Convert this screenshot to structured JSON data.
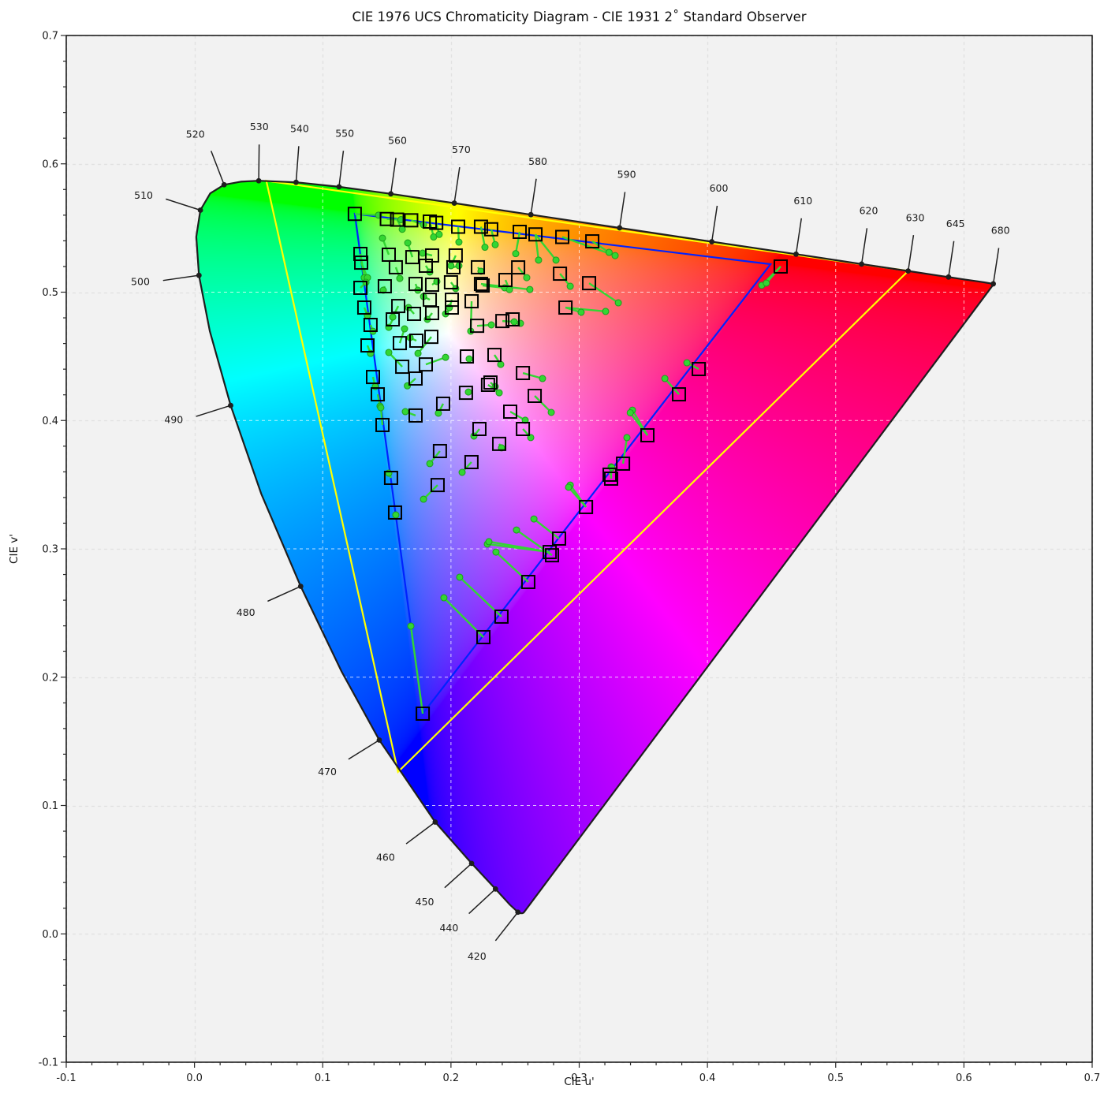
{
  "title": "CIE 1976 UCS Chromaticity Diagram - CIE 1931 2˚ Standard Observer",
  "axes": {
    "xlabel": "CIE u'",
    "ylabel": "CIE v'",
    "xlim": [
      -0.1,
      0.7
    ],
    "ylim": [
      -0.1,
      0.7
    ],
    "xticks": [
      "-0.1",
      "0.0",
      "0.1",
      "0.2",
      "0.3",
      "0.4",
      "0.5",
      "0.6",
      "0.7"
    ],
    "yticks": [
      "-0.1",
      "0.0",
      "0.1",
      "0.2",
      "0.3",
      "0.4",
      "0.5",
      "0.6",
      "0.7"
    ],
    "minor_tick_step": 0.02,
    "grid": true
  },
  "style": {
    "figure_bg": "#ffffff",
    "plot_bg": "#f2f2f2",
    "grid_gray": "#dcdcdc",
    "grid_white": "#ffffff",
    "spine": "#000000",
    "locus_line": "#1f1f1f",
    "tick_label_color": "#1a1a1a",
    "triangle_yellow": "#ffff00",
    "triangle_blue": "#0022ff",
    "marker_edge": "#000000",
    "measure_green": "#33d633",
    "measure_green_edge": "#1d9e1d"
  },
  "chart_data": {
    "type": "scatter",
    "title": "CIE 1976 UCS Chromaticity Diagram - CIE 1931 2˚ Standard Observer",
    "xlabel": "CIE u'",
    "ylabel": "CIE v'",
    "xlim": [
      -0.1,
      0.7
    ],
    "ylim": [
      -0.1,
      0.7
    ],
    "spectral_locus_format": "[wavelength_nm, u_prime, v_prime]",
    "spectral_locus": [
      [
        380,
        0.2568,
        0.0166
      ],
      [
        400,
        0.256,
        0.0161
      ],
      [
        410,
        0.2545,
        0.016
      ],
      [
        420,
        0.2522,
        0.0169
      ],
      [
        430,
        0.2461,
        0.0226
      ],
      [
        440,
        0.2347,
        0.035
      ],
      [
        450,
        0.2161,
        0.0549
      ],
      [
        460,
        0.1877,
        0.0871
      ],
      [
        470,
        0.1441,
        0.151
      ],
      [
        475,
        0.1147,
        0.2044
      ],
      [
        480,
        0.0828,
        0.2708
      ],
      [
        485,
        0.0521,
        0.3427
      ],
      [
        490,
        0.0282,
        0.4117
      ],
      [
        495,
        0.0119,
        0.4698
      ],
      [
        500,
        0.0035,
        0.5131
      ],
      [
        505,
        0.0014,
        0.5432
      ],
      [
        510,
        0.0046,
        0.5639
      ],
      [
        515,
        0.0123,
        0.577
      ],
      [
        520,
        0.0231,
        0.5837
      ],
      [
        525,
        0.036,
        0.5861
      ],
      [
        530,
        0.0501,
        0.5868
      ],
      [
        540,
        0.0792,
        0.5856
      ],
      [
        550,
        0.1127,
        0.5821
      ],
      [
        560,
        0.1531,
        0.5766
      ],
      [
        570,
        0.2026,
        0.5694
      ],
      [
        580,
        0.2623,
        0.5604
      ],
      [
        590,
        0.3315,
        0.5501
      ],
      [
        600,
        0.4034,
        0.5393
      ],
      [
        610,
        0.4691,
        0.5296
      ],
      [
        620,
        0.5202,
        0.5219
      ],
      [
        630,
        0.5565,
        0.5165
      ],
      [
        640,
        0.583,
        0.5125
      ],
      [
        645,
        0.588,
        0.5118
      ],
      [
        650,
        0.6005,
        0.5099
      ],
      [
        660,
        0.6109,
        0.5084
      ],
      [
        670,
        0.6162,
        0.5076
      ],
      [
        680,
        0.6229,
        0.5065
      ],
      [
        700,
        0.6234,
        0.5065
      ]
    ],
    "wavelength_labels": [
      420,
      440,
      450,
      460,
      470,
      480,
      490,
      500,
      510,
      520,
      530,
      540,
      550,
      560,
      570,
      580,
      590,
      600,
      610,
      620,
      630,
      645,
      680
    ],
    "gamut_triangles": [
      {
        "name": "outer-gamut-yellow",
        "color": "#ffff00",
        "vertices": [
          [
            0.056,
            0.5868
          ],
          [
            0.5566,
            0.5166
          ],
          [
            0.1587,
            0.1262
          ]
        ]
      },
      {
        "name": "inner-gamut-blue",
        "color": "#0022ff",
        "vertices": [
          [
            0.125,
            0.5611
          ],
          [
            0.4492,
            0.5218
          ],
          [
            0.178,
            0.1716
          ]
        ]
      }
    ],
    "markers_format": "[square_u, square_v, [[dot_u, dot_v], ...]] — black square = reference chromaticity, green dot(s)+line = measured chromaticity shift",
    "markers": [
      [
        0.125,
        0.561,
        [
          [
            0.1435,
            0.56
          ]
        ]
      ],
      [
        0.15,
        0.557,
        [
          [
            0.161,
            0.5565
          ]
        ]
      ],
      [
        0.158,
        0.5565,
        [
          [
            0.162,
            0.549
          ]
        ]
      ],
      [
        0.169,
        0.556,
        [
          [
            0.1785,
            0.5525
          ]
        ]
      ],
      [
        0.1835,
        0.555,
        [
          [
            0.1865,
            0.543
          ]
        ]
      ],
      [
        0.1885,
        0.554,
        [
          [
            0.1908,
            0.545
          ]
        ]
      ],
      [
        0.2056,
        0.551,
        [
          [
            0.2062,
            0.539
          ]
        ]
      ],
      [
        0.2234,
        0.551,
        [
          [
            0.2265,
            0.535
          ]
        ]
      ],
      [
        0.2314,
        0.549,
        [
          [
            0.2345,
            0.537
          ]
        ]
      ],
      [
        0.2536,
        0.547,
        [
          [
            0.2505,
            0.53
          ]
        ]
      ],
      [
        0.2659,
        0.545,
        [
          [
            0.2683,
            0.525
          ],
          [
            0.2819,
            0.525
          ]
        ]
      ],
      [
        0.2868,
        0.543,
        [
          [
            0.328,
            0.5285
          ]
        ]
      ],
      [
        0.3102,
        0.5396,
        [
          [
            0.3233,
            0.531
          ]
        ]
      ],
      [
        0.1294,
        0.5298,
        [
          [
            0.1324,
            0.5113
          ]
        ]
      ],
      [
        0.13,
        0.523,
        [
          [
            0.1349,
            0.5113
          ]
        ]
      ],
      [
        0.1515,
        0.5292,
        [
          [
            0.1466,
            0.5421
          ]
        ]
      ],
      [
        0.1699,
        0.5273,
        [
          [
            0.1663,
            0.5384
          ]
        ]
      ],
      [
        0.1853,
        0.5286,
        [
          [
            0.1779,
            0.5304
          ]
        ]
      ],
      [
        0.1804,
        0.5206,
        [
          [
            0.1835,
            0.5157
          ]
        ]
      ],
      [
        0.157,
        0.5194,
        [
          [
            0.1601,
            0.5107
          ]
        ]
      ],
      [
        0.2037,
        0.5286,
        [
          [
            0.2,
            0.5206
          ]
        ]
      ],
      [
        0.2019,
        0.5194,
        [
          [
            0.2062,
            0.5206
          ]
        ]
      ],
      [
        0.221,
        0.5194,
        [
          [
            0.2234,
            0.5163
          ]
        ]
      ],
      [
        0.2247,
        0.5052,
        [
          [
            0.2419,
            0.5034
          ]
        ]
      ],
      [
        0.2425,
        0.5095,
        [
          [
            0.2456,
            0.502
          ]
        ]
      ],
      [
        0.2524,
        0.5193,
        [
          [
            0.2591,
            0.5113
          ]
        ]
      ],
      [
        0.285,
        0.5144,
        [
          [
            0.293,
            0.5046
          ]
        ]
      ],
      [
        0.3077,
        0.507,
        [
          [
            0.3305,
            0.4917
          ]
        ]
      ],
      [
        0.1294,
        0.5034,
        [
          [
            0.1337,
            0.5077
          ]
        ]
      ],
      [
        0.1484,
        0.5046,
        [
          [
            0.1472,
            0.5015
          ]
        ]
      ],
      [
        0.1724,
        0.5064,
        [
          [
            0.1742,
            0.5015
          ]
        ]
      ],
      [
        0.1853,
        0.5058,
        [
          [
            0.189,
            0.5083
          ]
        ]
      ],
      [
        0.2,
        0.5077,
        [
          [
            0.2037,
            0.5028
          ]
        ]
      ],
      [
        0.2234,
        0.5064,
        [
          [
            0.2615,
            0.5021
          ]
        ]
      ],
      [
        0.1324,
        0.488,
        [
          [
            0.1349,
            0.4818
          ]
        ]
      ],
      [
        0.1589,
        0.4892,
        [
          [
            0.1546,
            0.4806
          ]
        ]
      ],
      [
        0.1835,
        0.4941,
        [
          [
            0.1786,
            0.4966
          ]
        ]
      ],
      [
        0.2007,
        0.4941,
        [
          [
            0.1988,
            0.488
          ]
        ]
      ],
      [
        0.2007,
        0.488,
        [
          [
            0.1958,
            0.4831
          ]
        ]
      ],
      [
        0.1853,
        0.4837,
        [
          [
            0.1816,
            0.4788
          ]
        ]
      ],
      [
        0.1712,
        0.4831,
        [
          [
            0.1669,
            0.488
          ]
        ]
      ],
      [
        0.1546,
        0.4788,
        [
          [
            0.1515,
            0.4726
          ]
        ]
      ],
      [
        0.2161,
        0.4929,
        [
          [
            0.2154,
            0.4696
          ]
        ]
      ],
      [
        0.2401,
        0.4775,
        [
          [
            0.2493,
            0.4769
          ]
        ]
      ],
      [
        0.2204,
        0.4738,
        [
          [
            0.2315,
            0.4745
          ]
        ]
      ],
      [
        0.2481,
        0.4788,
        [
          [
            0.2542,
            0.4757
          ]
        ]
      ],
      [
        0.2893,
        0.488,
        [
          [
            0.3015,
            0.4843
          ],
          [
            0.3206,
            0.485
          ]
        ]
      ],
      [
        0.1373,
        0.4745,
        [
          [
            0.1392,
            0.4695
          ]
        ]
      ],
      [
        0.1601,
        0.4603,
        [
          [
            0.1638,
            0.4714
          ]
        ]
      ],
      [
        0.173,
        0.4622,
        [
          [
            0.1681,
            0.4646
          ]
        ]
      ],
      [
        0.1847,
        0.4652,
        [
          [
            0.1743,
            0.4523
          ]
        ]
      ],
      [
        0.162,
        0.4419,
        [
          [
            0.1515,
            0.453
          ]
        ]
      ],
      [
        0.1804,
        0.4437,
        [
          [
            0.1958,
            0.4492
          ]
        ]
      ],
      [
        0.2124,
        0.4499,
        [
          [
            0.2142,
            0.448
          ]
        ]
      ],
      [
        0.2339,
        0.4511,
        [
          [
            0.2388,
            0.4437
          ]
        ]
      ],
      [
        0.1349,
        0.4585,
        [
          [
            0.1373,
            0.4523
          ]
        ]
      ],
      [
        0.1392,
        0.4339,
        [
          [
            0.141,
            0.4265
          ]
        ]
      ],
      [
        0.1724,
        0.4327,
        [
          [
            0.166,
            0.427
          ]
        ]
      ],
      [
        0.2308,
        0.4296,
        [
          [
            0.2345,
            0.4265
          ]
        ]
      ],
      [
        0.2117,
        0.4216,
        [
          [
            0.2136,
            0.4222
          ]
        ]
      ],
      [
        0.1429,
        0.4204,
        [
          [
            0.1447,
            0.4112
          ]
        ]
      ],
      [
        0.2289,
        0.4278,
        [
          [
            0.2376,
            0.4216
          ]
        ]
      ],
      [
        0.2561,
        0.437,
        [
          [
            0.2714,
            0.4327
          ]
        ]
      ],
      [
        0.2653,
        0.4192,
        [
          [
            0.2782,
            0.4063
          ]
        ]
      ],
      [
        0.1466,
        0.3965,
        [
          [
            0.1453,
            0.41
          ]
        ]
      ],
      [
        0.1724,
        0.4039,
        [
          [
            0.1644,
            0.4069
          ]
        ]
      ],
      [
        0.1939,
        0.4131,
        [
          [
            0.1902,
            0.4057
          ]
        ]
      ],
      [
        0.2462,
        0.4069,
        [
          [
            0.2579,
            0.4002
          ]
        ]
      ],
      [
        0.2222,
        0.3934,
        [
          [
            0.2179,
            0.3879
          ]
        ]
      ],
      [
        0.2561,
        0.3934,
        [
          [
            0.2622,
            0.3867
          ]
        ]
      ],
      [
        0.2376,
        0.3818,
        [
          [
            0.2394,
            0.3787
          ]
        ]
      ],
      [
        0.1914,
        0.3762,
        [
          [
            0.1835,
            0.3664
          ]
        ]
      ],
      [
        0.216,
        0.3676,
        [
          [
            0.2087,
            0.3596
          ]
        ]
      ],
      [
        0.1533,
        0.3553,
        [
          [
            0.1515,
            0.359
          ]
        ]
      ],
      [
        0.1896,
        0.3497,
        [
          [
            0.1786,
            0.3387
          ]
        ]
      ],
      [
        0.1564,
        0.3283,
        [
          [
            0.157,
            0.3264
          ]
        ]
      ],
      [
        0.3932,
        0.4401,
        [
          [
            0.384,
            0.445
          ]
        ]
      ],
      [
        0.3778,
        0.4204,
        [
          [
            0.3668,
            0.4327
          ]
        ]
      ],
      [
        0.3532,
        0.3885,
        [
          [
            0.3415,
            0.4081
          ],
          [
            0.3398,
            0.406
          ]
        ]
      ],
      [
        0.3342,
        0.3664,
        [
          [
            0.3372,
            0.3867
          ]
        ]
      ],
      [
        0.3249,
        0.3547,
        [
          [
            0.3249,
            0.3639
          ]
        ]
      ],
      [
        0.3237,
        0.3578,
        [
          [
            0.3255,
            0.3633
          ]
        ]
      ],
      [
        0.3053,
        0.3326,
        [
          [
            0.293,
            0.3497
          ],
          [
            0.2917,
            0.348
          ]
        ]
      ],
      [
        0.2843,
        0.308,
        [
          [
            0.2647,
            0.3233
          ]
        ]
      ],
      [
        0.277,
        0.2975,
        [
          [
            0.2284,
            0.3037
          ],
          [
            0.2296,
            0.3056
          ]
        ]
      ],
      [
        0.2788,
        0.295,
        [
          [
            0.2511,
            0.3147
          ]
        ]
      ],
      [
        0.2603,
        0.2742,
        [
          [
            0.2351,
            0.2975
          ]
        ]
      ],
      [
        0.2394,
        0.2472,
        [
          [
            0.2068,
            0.2779
          ]
        ]
      ],
      [
        0.2253,
        0.2312,
        [
          [
            0.1945,
            0.2619
          ]
        ]
      ],
      [
        0.178,
        0.1716,
        [
          [
            0.1687,
            0.2398
          ]
        ]
      ],
      [
        0.4571,
        0.52,
        [
          [
            0.4423,
            0.5053
          ],
          [
            0.4459,
            0.5071
          ]
        ]
      ]
    ]
  }
}
